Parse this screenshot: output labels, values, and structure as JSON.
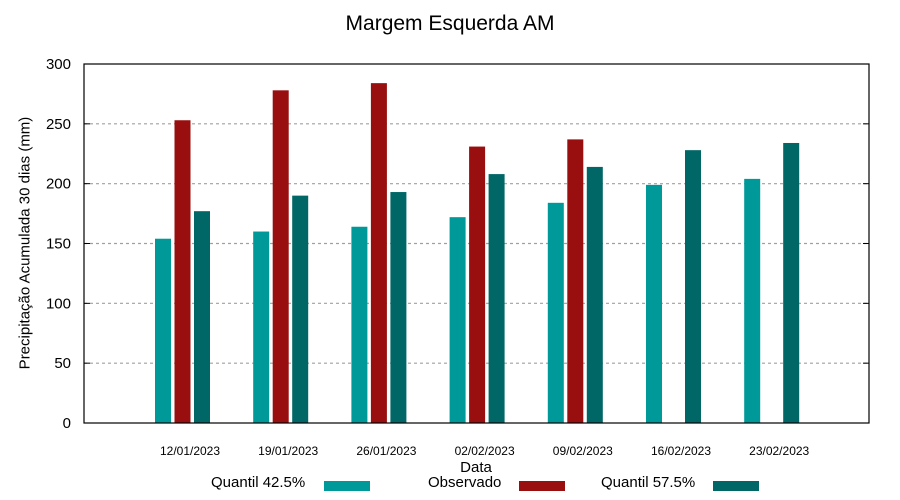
{
  "chart_data": {
    "type": "bar",
    "title": "Margem Esquerda AM",
    "xlabel": "Data",
    "ylabel": "Precipitação Acumulada 30 dias (mm)",
    "ylim": [
      0,
      300
    ],
    "yticks": [
      0,
      50,
      100,
      150,
      200,
      250,
      300
    ],
    "grid": "horizontal dashed",
    "legend_position": "bottom",
    "categories": [
      "12/01/2023",
      "19/01/2023",
      "26/01/2023",
      "02/02/2023",
      "09/02/2023",
      "16/02/2023",
      "23/02/2023"
    ],
    "series": [
      {
        "name": "Quantil 42.5%",
        "color": "#009999",
        "values": [
          154,
          160,
          164,
          172,
          184,
          199,
          204
        ]
      },
      {
        "name": "Observado",
        "color": "#990E0E",
        "values": [
          253,
          278,
          284,
          231,
          237,
          null,
          null
        ]
      },
      {
        "name": "Quantil 57.5%",
        "color": "#006666",
        "values": [
          177,
          190,
          193,
          208,
          214,
          228,
          234
        ]
      }
    ]
  },
  "legend": {
    "items": [
      {
        "label": "Quantil 42.5%",
        "color": "#009999"
      },
      {
        "label": "Observado",
        "color": "#990E0E"
      },
      {
        "label": "Quantil 57.5%",
        "color": "#006666"
      }
    ]
  }
}
